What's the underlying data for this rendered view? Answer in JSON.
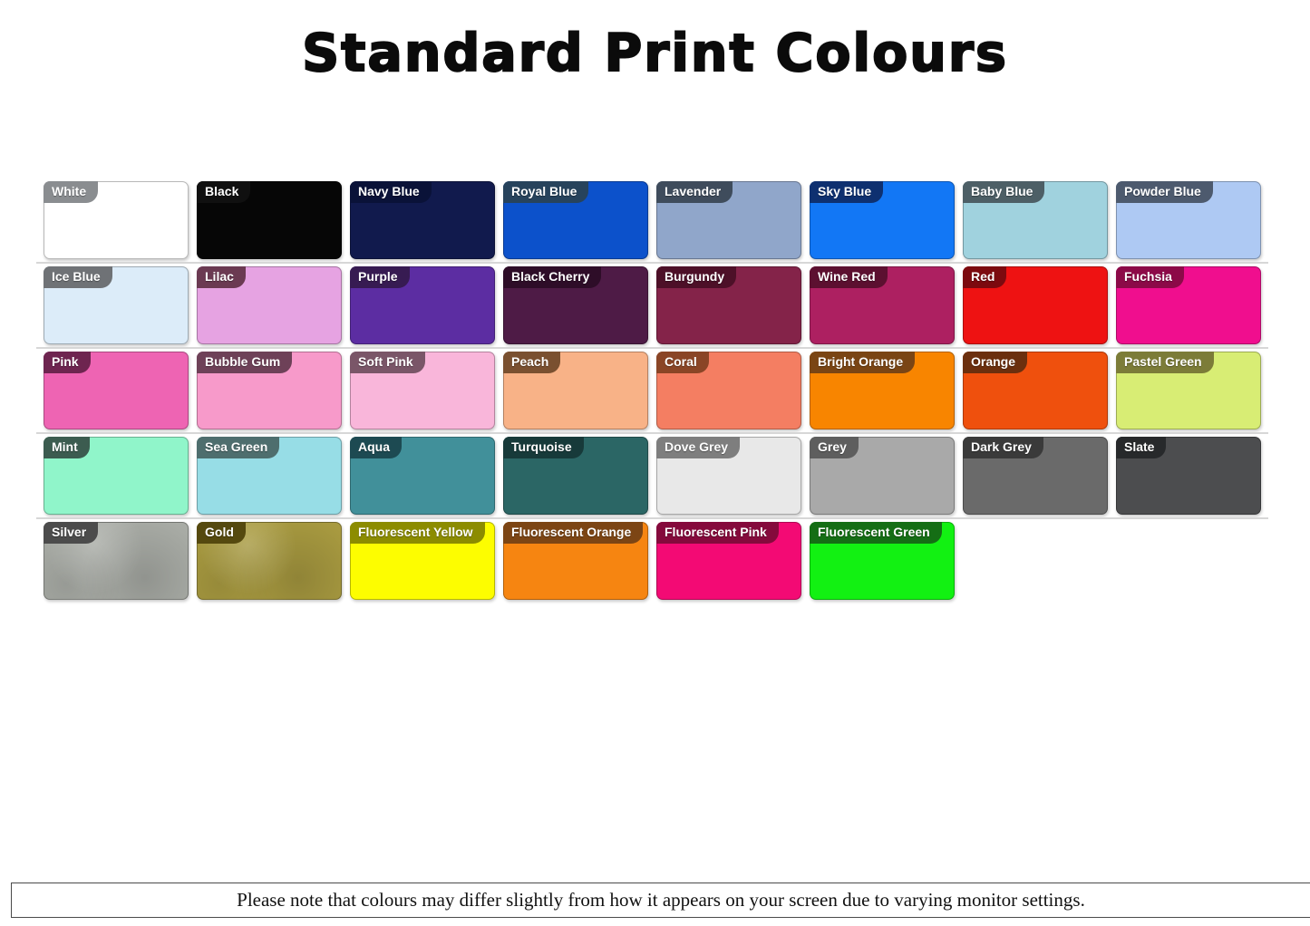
{
  "page": {
    "title": "Standard Print Colours",
    "footer_note": "Please note that colours may differ slightly from how it appears on your screen due to varying monitor settings.",
    "background_color": "#ffffff",
    "title_color": "#0b0b0b"
  },
  "swatches": {
    "rows": [
      [
        {
          "name": "White",
          "fill": "#ffffff",
          "tag": "#8a8d90"
        },
        {
          "name": "Black",
          "fill": "#060606",
          "tag": "#101010"
        },
        {
          "name": "Navy Blue",
          "fill": "#111a4d",
          "tag": "#0a1238"
        },
        {
          "name": "Royal Blue",
          "fill": "#0c51cb",
          "tag": "#27435c"
        },
        {
          "name": "Lavender",
          "fill": "#90a6ca",
          "tag": "#3f4c5c"
        },
        {
          "name": "Sky Blue",
          "fill": "#1277f5",
          "tag": "#0e3070"
        },
        {
          "name": "Baby Blue",
          "fill": "#a0d2de",
          "tag": "#4d5f66"
        },
        {
          "name": "Powder Blue",
          "fill": "#aec9f3",
          "tag": "#4d5a6e"
        }
      ],
      [
        {
          "name": "Ice Blue",
          "fill": "#dcecf9",
          "tag": "#6f7276"
        },
        {
          "name": "Lilac",
          "fill": "#e6a3e2",
          "tag": "#6b3a52"
        },
        {
          "name": "Purple",
          "fill": "#5c2da2",
          "tag": "#371b52"
        },
        {
          "name": "Black Cherry",
          "fill": "#4e1b46",
          "tag": "#2e0d28"
        },
        {
          "name": "Burgundy",
          "fill": "#842349",
          "tag": "#4d1028"
        },
        {
          "name": "Wine Red",
          "fill": "#ad2061",
          "tag": "#5c1030"
        },
        {
          "name": "Red",
          "fill": "#ee1212",
          "tag": "#7c0a0f"
        },
        {
          "name": "Fuchsia",
          "fill": "#f00e8e",
          "tag": "#8c0a48"
        }
      ],
      [
        {
          "name": "Pink",
          "fill": "#ee64b3",
          "tag": "#6e2550"
        },
        {
          "name": "Bubble Gum",
          "fill": "#f79aca",
          "tag": "#6e4158"
        },
        {
          "name": "Soft Pink",
          "fill": "#f9b6da",
          "tag": "#7a5668"
        },
        {
          "name": "Peach",
          "fill": "#f8b287",
          "tag": "#7a5030"
        },
        {
          "name": "Coral",
          "fill": "#f47e62",
          "tag": "#8a4526"
        },
        {
          "name": "Bright Orange",
          "fill": "#f88500",
          "tag": "#7a4514"
        },
        {
          "name": "Orange",
          "fill": "#ef500d",
          "tag": "#6b2f0e"
        },
        {
          "name": "Pastel Green",
          "fill": "#d8ed74",
          "tag": "#7c7c38"
        }
      ],
      [
        {
          "name": "Mint",
          "fill": "#90f5ca",
          "tag": "#3c5c50"
        },
        {
          "name": "Sea Green",
          "fill": "#97dde6",
          "tag": "#4e6e6e"
        },
        {
          "name": "Aqua",
          "fill": "#41909a",
          "tag": "#1d4a52"
        },
        {
          "name": "Turquoise",
          "fill": "#2b6665",
          "tag": "#173a3a"
        },
        {
          "name": "Dove Grey",
          "fill": "#e8e8e8",
          "tag": "#7e7e7e"
        },
        {
          "name": "Grey",
          "fill": "#a9a9a9",
          "tag": "#5e5e5e"
        },
        {
          "name": "Dark Grey",
          "fill": "#6a6a6a",
          "tag": "#3a3a3a"
        },
        {
          "name": "Slate",
          "fill": "#4c4d4f",
          "tag": "#27292b"
        }
      ],
      [
        {
          "name": "Silver",
          "fill": "#a9aca6",
          "tag": "#4c4c4c",
          "texture": true
        },
        {
          "name": "Gold",
          "fill": "#a89a40",
          "tag": "#55490f",
          "texture": true
        },
        {
          "name": "Fluorescent Yellow",
          "fill": "#fdfd00",
          "tag": "#8c8c00"
        },
        {
          "name": "Fluorescent Orange",
          "fill": "#f68511",
          "tag": "#7c4514"
        },
        {
          "name": "Fluorescent Pink",
          "fill": "#f30a74",
          "tag": "#850a3c"
        },
        {
          "name": "Fluorescent Green",
          "fill": "#12f112",
          "tag": "#156e15"
        }
      ]
    ]
  }
}
